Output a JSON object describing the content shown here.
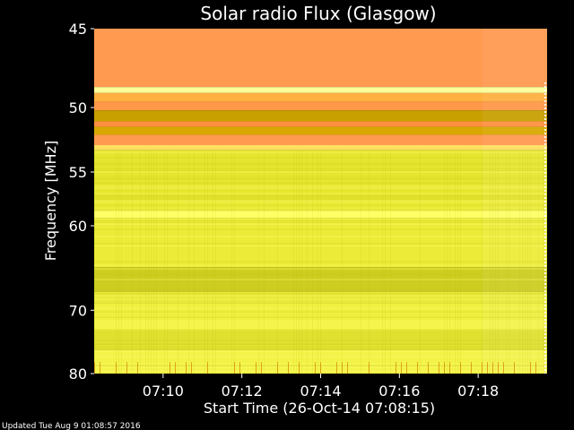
{
  "chart_data": {
    "type": "heatmap",
    "title": "Solar radio Flux (Glasgow)",
    "ylabel": "Frequency [MHz]",
    "xlabel": "Start Time (26-Oct-14 07:08:15)",
    "y_ticks": [
      45,
      50,
      55,
      60,
      70,
      80
    ],
    "y_tick_labels": [
      "45",
      "50",
      "55",
      "60",
      "70",
      "80"
    ],
    "ylim": [
      45,
      80
    ],
    "y_scale": "reciprocal",
    "x_ticks": [
      "07:10",
      "07:12",
      "07:14",
      "07:16",
      "07:18"
    ],
    "x_range": [
      "07:08:15",
      "07:19:45"
    ],
    "grid": false,
    "legend": "none",
    "colormap": [
      "#c89a00",
      "#ffff33",
      "#ff9a50"
    ],
    "bands": [
      {
        "from": 45,
        "to": 48.6,
        "color": "#ff9a50"
      },
      {
        "from": 48.6,
        "to": 49.0,
        "color": "#ffff99"
      },
      {
        "from": 49.0,
        "to": 49.6,
        "color": "#ffb040"
      },
      {
        "from": 49.6,
        "to": 50.2,
        "color": "#ff9848"
      },
      {
        "from": 50.2,
        "to": 51.0,
        "color": "#c8a000"
      },
      {
        "from": 51.0,
        "to": 51.4,
        "color": "#ff9040"
      },
      {
        "from": 51.4,
        "to": 52.0,
        "color": "#d8a800"
      },
      {
        "from": 52.0,
        "to": 52.8,
        "color": "#ff9a50"
      },
      {
        "from": 52.8,
        "to": 53.2,
        "color": "#ffe060"
      },
      {
        "from": 53.2,
        "to": 58.5,
        "color": "#e6e630"
      },
      {
        "from": 58.5,
        "to": 59.2,
        "color": "#ffff66"
      },
      {
        "from": 59.2,
        "to": 64.5,
        "color": "#ecec38"
      },
      {
        "from": 64.5,
        "to": 67.5,
        "color": "#cccc20"
      },
      {
        "from": 67.5,
        "to": 69.0,
        "color": "#e8e838"
      },
      {
        "from": 69.0,
        "to": 73.0,
        "color": "#f0f040"
      },
      {
        "from": 73.0,
        "to": 76.0,
        "color": "#e0e030"
      },
      {
        "from": 76.0,
        "to": 80.0,
        "color": "#f2f248"
      }
    ]
  },
  "footer": {
    "updated": "Updated Tue Aug  9 01:08:57 2016"
  }
}
